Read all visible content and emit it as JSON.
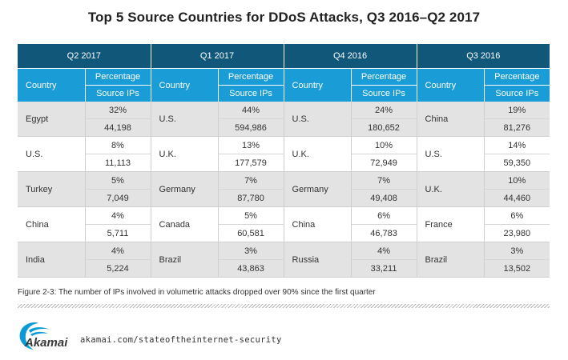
{
  "chart_data": {
    "type": "table",
    "title": "Top 5 Source Countries for DDoS Attacks, Q3 2016–Q2 2017",
    "quarters": [
      "Q2 2017",
      "Q1 2017",
      "Q4 2016",
      "Q3 2016"
    ],
    "column_headers": {
      "country": "Country",
      "percentage_line1": "Percentage",
      "percentage_line2": "Source IPs"
    },
    "ranks": [
      [
        {
          "country": "Egypt",
          "percentage": "32%",
          "source_ips": "44,198"
        },
        {
          "country": "U.S.",
          "percentage": "44%",
          "source_ips": "594,986"
        },
        {
          "country": "U.S.",
          "percentage": "24%",
          "source_ips": "180,652"
        },
        {
          "country": "China",
          "percentage": "19%",
          "source_ips": "81,276"
        }
      ],
      [
        {
          "country": "U.S.",
          "percentage": "8%",
          "source_ips": "11,113"
        },
        {
          "country": "U.K.",
          "percentage": "13%",
          "source_ips": "177,579"
        },
        {
          "country": "U.K.",
          "percentage": "10%",
          "source_ips": "72,949"
        },
        {
          "country": "U.S.",
          "percentage": "14%",
          "source_ips": "59,350"
        }
      ],
      [
        {
          "country": "Turkey",
          "percentage": "5%",
          "source_ips": "7,049"
        },
        {
          "country": "Germany",
          "percentage": "7%",
          "source_ips": "87,780"
        },
        {
          "country": "Germany",
          "percentage": "7%",
          "source_ips": "49,408"
        },
        {
          "country": "U.K.",
          "percentage": "10%",
          "source_ips": "44,460"
        }
      ],
      [
        {
          "country": "China",
          "percentage": "4%",
          "source_ips": "5,711"
        },
        {
          "country": "Canada",
          "percentage": "5%",
          "source_ips": "60,581"
        },
        {
          "country": "China",
          "percentage": "6%",
          "source_ips": "46,783"
        },
        {
          "country": "France",
          "percentage": "6%",
          "source_ips": "23,980"
        }
      ],
      [
        {
          "country": "India",
          "percentage": "4%",
          "source_ips": "5,224"
        },
        {
          "country": "Brazil",
          "percentage": "3%",
          "source_ips": "43,863"
        },
        {
          "country": "Russia",
          "percentage": "4%",
          "source_ips": "33,211"
        },
        {
          "country": "Brazil",
          "percentage": "3%",
          "source_ips": "13,502"
        }
      ]
    ]
  },
  "caption": "Figure 2-3: The number of IPs involved in volumetric attacks dropped over 90% since the first quarter",
  "footer": {
    "logo_text": "Akamai",
    "url": "akamai.com/stateoftheinternet-security"
  },
  "colors": {
    "quarter_header": "#10577a",
    "sub_header": "#1a9cd7",
    "row_shade": "#e3e3e3",
    "logo_blue": "#0a9ad6"
  }
}
